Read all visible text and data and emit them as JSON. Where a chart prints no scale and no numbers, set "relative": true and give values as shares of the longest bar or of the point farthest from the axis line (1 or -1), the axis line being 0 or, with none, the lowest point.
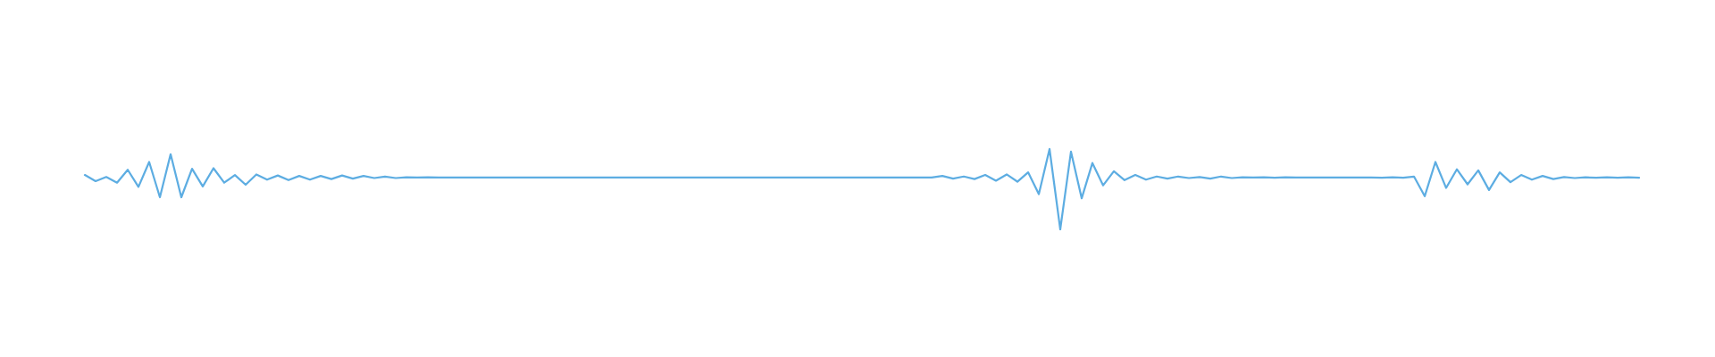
{
  "chart_data": {
    "type": "line",
    "relative": true,
    "categories": [
      null,
      null,
      null,
      null,
      null,
      null,
      null,
      null,
      null,
      null,
      null,
      null,
      null,
      null,
      null,
      null,
      null,
      null,
      null,
      null,
      null,
      null,
      null,
      null,
      null,
      null,
      null,
      null,
      null,
      null,
      null,
      null,
      null,
      null,
      null,
      null,
      null,
      null,
      null,
      null,
      null,
      null,
      null,
      null,
      null,
      null,
      null,
      null,
      null,
      null,
      null,
      null,
      null,
      null,
      null,
      null,
      null,
      null,
      null,
      null,
      null,
      null,
      null,
      null,
      null,
      null,
      null,
      null,
      null,
      null,
      null,
      null,
      null,
      null,
      null,
      null,
      null,
      null,
      null,
      null,
      null,
      null,
      null,
      null,
      null,
      null,
      null,
      null,
      null,
      null,
      null,
      null,
      null,
      null,
      null,
      null,
      null,
      null,
      null,
      null,
      null,
      null,
      null,
      null,
      null,
      null,
      null,
      null,
      null,
      null,
      null,
      null,
      null,
      null,
      null,
      null,
      null,
      null,
      null,
      null,
      null,
      null,
      null,
      null,
      null,
      null,
      null,
      null,
      null,
      null,
      null,
      null,
      null,
      null,
      null,
      null,
      null,
      null,
      null,
      null,
      null,
      null,
      null,
      null,
      null,
      null
    ],
    "series": [
      {
        "color": "#5dade2",
        "values": [
          0.677,
          0.6,
          0.652,
          0.581,
          0.742,
          0.529,
          0.839,
          0.4,
          0.935,
          0.4,
          0.755,
          0.535,
          0.761,
          0.581,
          0.677,
          0.555,
          0.684,
          0.619,
          0.671,
          0.613,
          0.665,
          0.619,
          0.665,
          0.626,
          0.671,
          0.632,
          0.665,
          0.639,
          0.658,
          0.639,
          0.648,
          0.645,
          0.648,
          0.645,
          0.645,
          0.645,
          0.645,
          0.645,
          0.645,
          0.645,
          0.645,
          0.645,
          0.645,
          0.645,
          0.645,
          0.645,
          0.645,
          0.645,
          0.645,
          0.645,
          0.645,
          0.645,
          0.645,
          0.645,
          0.645,
          0.645,
          0.645,
          0.645,
          0.645,
          0.645,
          0.645,
          0.645,
          0.645,
          0.645,
          0.645,
          0.645,
          0.645,
          0.645,
          0.645,
          0.645,
          0.645,
          0.645,
          0.645,
          0.645,
          0.645,
          0.645,
          0.645,
          0.645,
          0.645,
          0.645,
          0.665,
          0.632,
          0.658,
          0.626,
          0.677,
          0.606,
          0.684,
          0.594,
          0.71,
          0.439,
          1,
          0,
          0.968,
          0.387,
          0.826,
          0.548,
          0.723,
          0.613,
          0.677,
          0.619,
          0.658,
          0.632,
          0.658,
          0.639,
          0.652,
          0.632,
          0.658,
          0.639,
          0.648,
          0.645,
          0.648,
          0.642,
          0.648,
          0.645,
          0.645,
          0.645,
          0.645,
          0.645,
          0.645,
          0.645,
          0.645,
          0.642,
          0.648,
          0.642,
          0.658,
          0.413,
          0.839,
          0.516,
          0.748,
          0.561,
          0.735,
          0.49,
          0.71,
          0.587,
          0.677,
          0.619,
          0.665,
          0.626,
          0.652,
          0.639,
          0.648,
          0.642,
          0.648,
          0.642,
          0.648,
          0.642
        ]
      }
    ]
  }
}
